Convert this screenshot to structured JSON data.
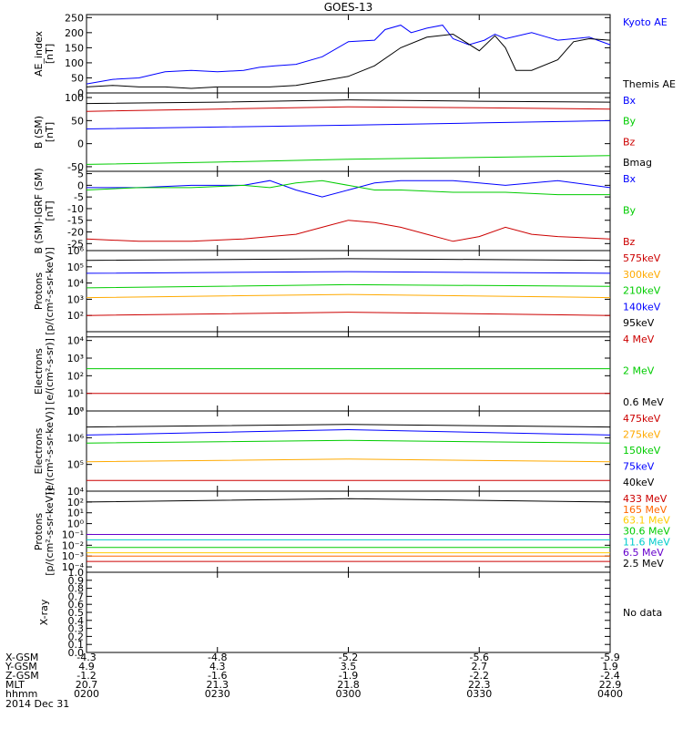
{
  "title": "GOES-13",
  "x_ticks": 5,
  "chart_data": [
    {
      "type": "line",
      "ylabel": "AE_index\n[nT]",
      "ylim": [
        0,
        260
      ],
      "yscale": "linear",
      "yticks": [
        0,
        50,
        100,
        150,
        200,
        250
      ],
      "yticklabels": [
        "0",
        "50",
        "100",
        "150",
        "200",
        "250"
      ],
      "series": [
        {
          "name": "Kyoto AE",
          "color": "#0000ff",
          "x": [
            0,
            0.05,
            0.1,
            0.15,
            0.2,
            0.25,
            0.3,
            0.33,
            0.36,
            0.4,
            0.45,
            0.5,
            0.55,
            0.57,
            0.6,
            0.62,
            0.65,
            0.68,
            0.7,
            0.73,
            0.76,
            0.78,
            0.8,
            0.85,
            0.88,
            0.9,
            0.93,
            0.96,
            1.0
          ],
          "values": [
            30,
            45,
            50,
            70,
            75,
            70,
            75,
            85,
            90,
            95,
            120,
            170,
            175,
            210,
            225,
            200,
            215,
            225,
            180,
            160,
            175,
            195,
            180,
            200,
            185,
            175,
            180,
            185,
            160
          ]
        },
        {
          "name": "Themis AE",
          "color": "#000000",
          "x": [
            0,
            0.05,
            0.1,
            0.15,
            0.2,
            0.25,
            0.3,
            0.35,
            0.4,
            0.45,
            0.5,
            0.55,
            0.6,
            0.65,
            0.7,
            0.75,
            0.78,
            0.8,
            0.82,
            0.85,
            0.9,
            0.93,
            0.96,
            1.0
          ],
          "values": [
            20,
            25,
            20,
            20,
            15,
            20,
            20,
            20,
            25,
            40,
            55,
            90,
            150,
            185,
            195,
            140,
            190,
            150,
            75,
            75,
            110,
            170,
            180,
            175
          ]
        }
      ]
    },
    {
      "type": "line",
      "ylabel": "B (SM)\n[nT]",
      "ylim": [
        -60,
        110
      ],
      "yscale": "linear",
      "yticks": [
        -50,
        0,
        50,
        100
      ],
      "yticklabels": [
        "-50",
        "0",
        "50",
        "100"
      ],
      "series": [
        {
          "name": "Bx",
          "color": "#0000ff",
          "x": [
            0,
            0.25,
            0.5,
            0.75,
            1.0
          ],
          "values": [
            32,
            36,
            40,
            45,
            50
          ]
        },
        {
          "name": "By",
          "color": "#00cc00",
          "x": [
            0,
            0.25,
            0.5,
            0.75,
            1.0
          ],
          "values": [
            -45,
            -40,
            -34,
            -30,
            -26
          ]
        },
        {
          "name": "Bz",
          "color": "#cc0000",
          "x": [
            0,
            0.25,
            0.5,
            0.75,
            1.0
          ],
          "values": [
            70,
            75,
            80,
            78,
            75
          ]
        },
        {
          "name": "Bmag",
          "color": "#000000",
          "x": [
            0,
            0.25,
            0.5,
            0.75,
            1.0
          ],
          "values": [
            87,
            90,
            95,
            92,
            90
          ]
        }
      ]
    },
    {
      "type": "line",
      "ylabel": "B (SM)-IGRF (SM)\n[nT]",
      "ylim": [
        -28,
        6
      ],
      "yscale": "linear",
      "yticks": [
        -25,
        -20,
        -15,
        -10,
        -5,
        0,
        5
      ],
      "yticklabels": [
        "-25",
        "-20",
        "-15",
        "-10",
        "-5",
        "0",
        "5"
      ],
      "series": [
        {
          "name": "Bx",
          "color": "#0000ff",
          "x": [
            0,
            0.1,
            0.2,
            0.3,
            0.35,
            0.4,
            0.45,
            0.5,
            0.55,
            0.6,
            0.7,
            0.8,
            0.9,
            1.0
          ],
          "values": [
            -1,
            -1,
            0,
            0,
            2,
            -2,
            -5,
            -2,
            1,
            2,
            2,
            0,
            2,
            -1
          ]
        },
        {
          "name": "By",
          "color": "#00cc00",
          "x": [
            0,
            0.1,
            0.2,
            0.3,
            0.35,
            0.4,
            0.45,
            0.5,
            0.55,
            0.6,
            0.7,
            0.8,
            0.9,
            1.0
          ],
          "values": [
            -2,
            -1,
            -1,
            0,
            -1,
            1,
            2,
            0,
            -2,
            -2,
            -3,
            -3,
            -4,
            -4
          ]
        },
        {
          "name": "Bz",
          "color": "#cc0000",
          "x": [
            0,
            0.1,
            0.2,
            0.3,
            0.35,
            0.4,
            0.45,
            0.5,
            0.55,
            0.6,
            0.65,
            0.7,
            0.75,
            0.8,
            0.85,
            0.9,
            1.0
          ],
          "values": [
            -23,
            -24,
            -24,
            -23,
            -22,
            -21,
            -18,
            -15,
            -16,
            -18,
            -21,
            -24,
            -22,
            -18,
            -21,
            -22,
            -23
          ]
        }
      ]
    },
    {
      "type": "line",
      "ylabel": "Protons\n[p/(cm²-s-sr-keV)]",
      "ylim": [
        1,
        6
      ],
      "yscale": "log",
      "yticks": [
        2,
        3,
        4,
        5,
        6
      ],
      "yticklabels": [
        "10²",
        "10³",
        "10⁴",
        "10⁵",
        "10⁶"
      ],
      "series": [
        {
          "name": "575keV",
          "color": "#cc0000",
          "x": [
            0,
            0.5,
            1.0
          ],
          "values": [
            2.0,
            2.2,
            2.0
          ]
        },
        {
          "name": "300keV",
          "color": "#ffaa00",
          "x": [
            0,
            0.5,
            1.0
          ],
          "values": [
            3.1,
            3.3,
            3.1
          ]
        },
        {
          "name": "210keV",
          "color": "#00cc00",
          "x": [
            0,
            0.5,
            1.0
          ],
          "values": [
            3.7,
            3.9,
            3.8
          ]
        },
        {
          "name": "140keV",
          "color": "#0000ff",
          "x": [
            0,
            0.5,
            1.0
          ],
          "values": [
            4.6,
            4.7,
            4.6
          ]
        },
        {
          "name": "95keV",
          "color": "#000000",
          "x": [
            0,
            0.5,
            1.0
          ],
          "values": [
            5.4,
            5.5,
            5.4
          ]
        }
      ]
    },
    {
      "type": "line",
      "ylabel": "Electrons\n[e/(cm²-s-sr)]",
      "ylim": [
        0,
        4.5
      ],
      "yscale": "log",
      "yticks": [
        0,
        1,
        2,
        3,
        4
      ],
      "yticklabels": [
        "10⁰",
        "10¹",
        "10²",
        "10³",
        "10⁴"
      ],
      "series": [
        {
          "name": "4 MeV",
          "color": "#cc0000",
          "x": [
            0,
            0.5,
            1.0
          ],
          "values": [
            1.0,
            1.0,
            1.0
          ]
        },
        {
          "name": "2 MeV",
          "color": "#00cc00",
          "x": [
            0,
            0.5,
            1.0
          ],
          "values": [
            2.4,
            2.4,
            2.4
          ]
        },
        {
          "name": "0.6 MeV",
          "color": "#000000",
          "x": [
            0,
            0.5,
            1.0
          ],
          "values": [
            4.2,
            4.2,
            4.2
          ]
        }
      ]
    },
    {
      "type": "line",
      "ylabel": "Electrons\n[e/(cm²-s-sr-keV)]",
      "ylim": [
        4,
        7
      ],
      "yscale": "log",
      "yticks": [
        4,
        5,
        6,
        7
      ],
      "yticklabels": [
        "10⁴",
        "10⁵",
        "10⁶",
        "10⁷"
      ],
      "series": [
        {
          "name": "475keV",
          "color": "#cc0000",
          "x": [
            0,
            0.5,
            1.0
          ],
          "values": [
            4.4,
            4.4,
            4.4
          ]
        },
        {
          "name": "275keV",
          "color": "#ffaa00",
          "x": [
            0,
            0.5,
            1.0
          ],
          "values": [
            5.1,
            5.2,
            5.1
          ]
        },
        {
          "name": "150keV",
          "color": "#00cc00",
          "x": [
            0,
            0.5,
            1.0
          ],
          "values": [
            5.8,
            5.9,
            5.8
          ]
        },
        {
          "name": "75keV",
          "color": "#0000ff",
          "x": [
            0,
            0.5,
            1.0
          ],
          "values": [
            6.1,
            6.3,
            6.1
          ]
        },
        {
          "name": "40keV",
          "color": "#000000",
          "x": [
            0,
            0.5,
            1.0
          ],
          "values": [
            6.4,
            6.5,
            6.4
          ]
        }
      ]
    },
    {
      "type": "line",
      "ylabel": "Protons\n[p/(cm²-s-sr-keV)]",
      "ylim": [
        -4.5,
        3
      ],
      "yscale": "log",
      "yticks": [
        -4,
        -3,
        -2,
        -1,
        0,
        1,
        2
      ],
      "yticklabels": [
        "10⁻⁴",
        "10⁻³",
        "10⁻²",
        "10⁻¹",
        "10⁰",
        "10¹",
        "10²"
      ],
      "series": [
        {
          "name": "433 MeV",
          "color": "#cc0000",
          "x": [
            0,
            1.0
          ],
          "values": [
            -3.5,
            -3.5
          ]
        },
        {
          "name": "165 MeV",
          "color": "#ff6600",
          "x": [
            0,
            1.0
          ],
          "values": [
            -3.0,
            -3.0
          ]
        },
        {
          "name": "63.1 MeV",
          "color": "#ffcc00",
          "x": [
            0,
            1.0
          ],
          "values": [
            -2.7,
            -2.7
          ]
        },
        {
          "name": "30.6 MeV",
          "color": "#00cc00",
          "x": [
            0,
            1.0
          ],
          "values": [
            -2.2,
            -2.2
          ]
        },
        {
          "name": "11.6 MeV",
          "color": "#00cccc",
          "x": [
            0,
            1.0
          ],
          "values": [
            -1.5,
            -1.5
          ]
        },
        {
          "name": "6.5 MeV",
          "color": "#6600cc",
          "x": [
            0,
            1.0
          ],
          "values": [
            -1.0,
            -1.0
          ]
        },
        {
          "name": "2.5 MeV",
          "color": "#000000",
          "x": [
            0,
            0.5,
            1.0
          ],
          "values": [
            2.0,
            2.3,
            2.0
          ]
        }
      ]
    },
    {
      "type": "line",
      "ylabel": "X-ray",
      "ylim": [
        0,
        1
      ],
      "yscale": "linear",
      "yticks": [
        0,
        0.1,
        0.2,
        0.3,
        0.4,
        0.5,
        0.6,
        0.7,
        0.8,
        0.9,
        1.0
      ],
      "yticklabels": [
        "0.0",
        "0.1",
        "0.2",
        "0.3",
        "0.4",
        "0.5",
        "0.6",
        "0.7",
        "0.8",
        "0.9",
        "1.0"
      ],
      "no_data_label": "No data",
      "series": []
    }
  ],
  "footer": {
    "row_labels": [
      "X-GSM",
      "Y-GSM",
      "Z-GSM",
      "MLT",
      "hhmm",
      "2014 Dec 31"
    ],
    "columns": [
      [
        "-4.3",
        "4.9",
        "-1.2",
        "20.7",
        "0200"
      ],
      [
        "-4.8",
        "4.3",
        "-1.6",
        "21.3",
        "0230"
      ],
      [
        "-5.2",
        "3.5",
        "-1.9",
        "21.8",
        "0300"
      ],
      [
        "-5.6",
        "2.7",
        "-2.2",
        "22.3",
        "0330"
      ],
      [
        "-5.9",
        "1.9",
        "-2.4",
        "22.9",
        "0400"
      ]
    ]
  }
}
